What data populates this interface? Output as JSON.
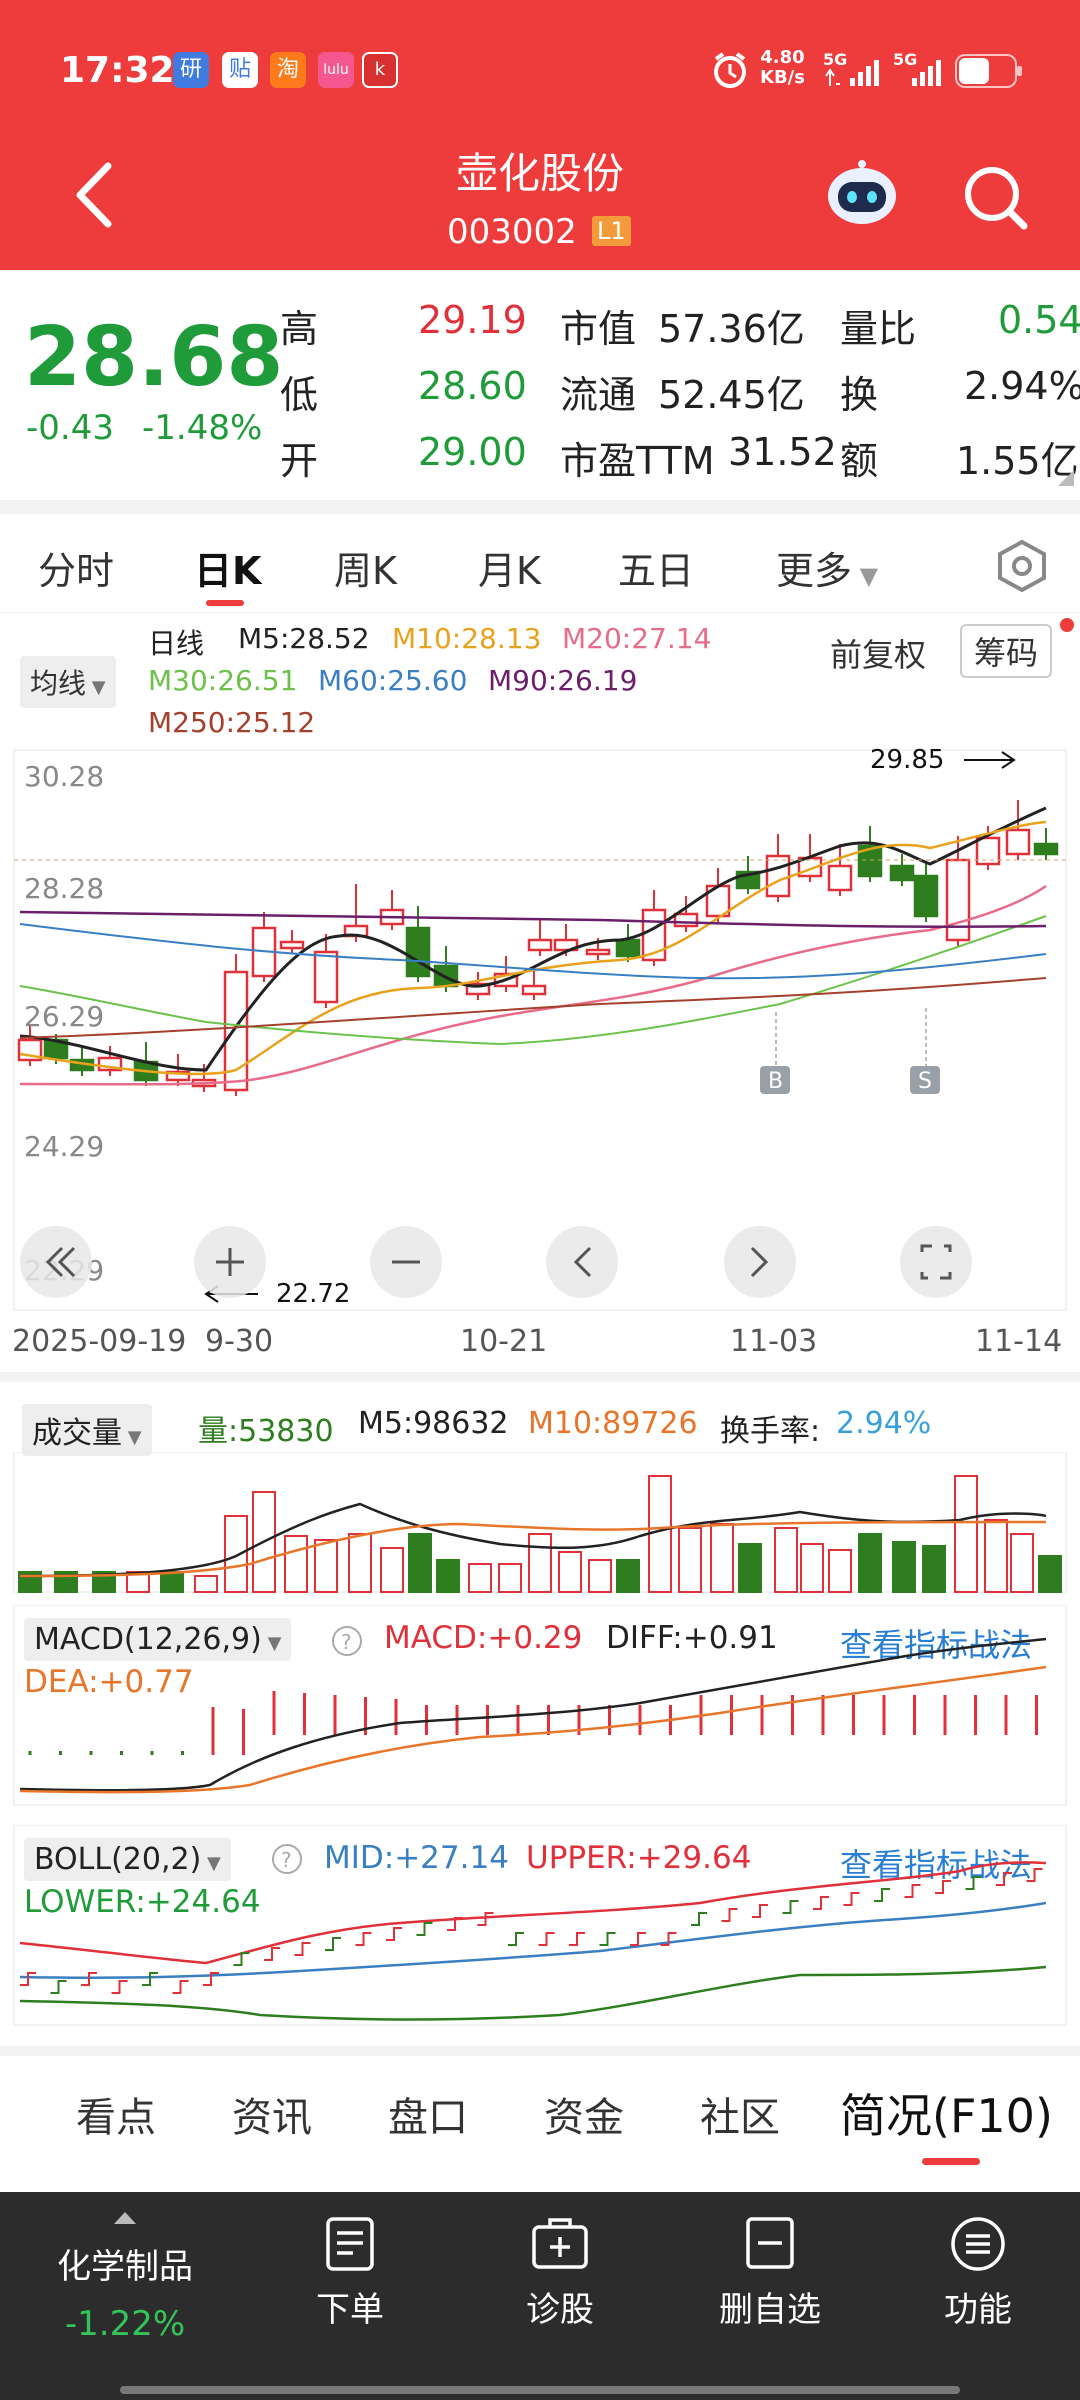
{
  "status": {
    "time": "17:32",
    "net_speed": "4.80",
    "net_unit": "KB/s",
    "sig1": "5G",
    "sig2": "5G",
    "app_icons": [
      "研",
      "贴",
      "淘",
      "lulu",
      "k"
    ]
  },
  "header": {
    "title": "壶化股份",
    "code": "003002",
    "badge": "L1"
  },
  "quote": {
    "price": "28.68",
    "change": "-0.43",
    "change_pct": "-1.48%",
    "rows": [
      {
        "l1": "高",
        "v1": "29.19",
        "l2": "市值",
        "v2": "57.36亿",
        "l3": "量比",
        "v3": "0.54"
      },
      {
        "l1": "低",
        "v1": "28.60",
        "l2": "流通",
        "v2": "52.45亿",
        "l3": "换",
        "v3": "2.94%"
      },
      {
        "l1": "开",
        "v1": "29.00",
        "l2": "市盈TTM",
        "v2": "31.52",
        "l3": "额",
        "v3": "1.55亿"
      }
    ]
  },
  "tabs": [
    "分时",
    "日K",
    "周K",
    "月K",
    "五日",
    "更多"
  ],
  "tab_active": "日K",
  "ma": {
    "selector": "均线",
    "line": "日线",
    "m5": "M5:28.52",
    "m10": "M10:28.13",
    "m20": "M20:27.14",
    "m30": "M30:26.51",
    "m60": "M60:25.60",
    "m90": "M90:26.19",
    "m250": "M250:25.12"
  },
  "rights": "前复权",
  "chips": "筹码",
  "kline": {
    "max_label": "29.85",
    "min_label": "22.72",
    "y_ticks": [
      "30.28",
      "28.28",
      "26.29",
      "24.29",
      "22.29"
    ],
    "x_ticks": [
      "2025-09-19",
      "9-30",
      "10-21",
      "11-03",
      "11-14"
    ],
    "buy": "B",
    "sell": "S"
  },
  "volume": {
    "selector": "成交量",
    "vol": "量:53830",
    "m5": "M5:98632",
    "m10": "M10:89726",
    "turnover_label": "换手率:",
    "turnover": "2.94%"
  },
  "macd": {
    "selector": "MACD(12,26,9)",
    "macd": "MACD:+0.29",
    "diff": "DIFF:+0.91",
    "dea": "DEA:+0.77",
    "link": "查看指标战法"
  },
  "boll": {
    "selector": "BOLL(20,2)",
    "mid": "MID:+27.14",
    "upper": "UPPER:+29.64",
    "lower": "LOWER:+24.64",
    "link": "查看指标战法"
  },
  "bottom_tabs": [
    "看点",
    "资讯",
    "盘口",
    "资金",
    "社区",
    "简况(F10)"
  ],
  "bottom_tab_active": "简况(F10)",
  "bottom_nav": {
    "sector": "化学制品",
    "sector_change": "-1.22%",
    "items": [
      "下单",
      "诊股",
      "删自选",
      "功能"
    ]
  },
  "colors": {
    "brand_red": "#ee3b3b",
    "up": "#e0303a",
    "down": "#2e7d1f",
    "m5": "#222222",
    "m10": "#e8a21c",
    "m20": "#e86c8a",
    "m30": "#6cc24a",
    "m60": "#3a7fc1",
    "m90": "#6a1f6a",
    "m250": "#a5402d"
  }
}
